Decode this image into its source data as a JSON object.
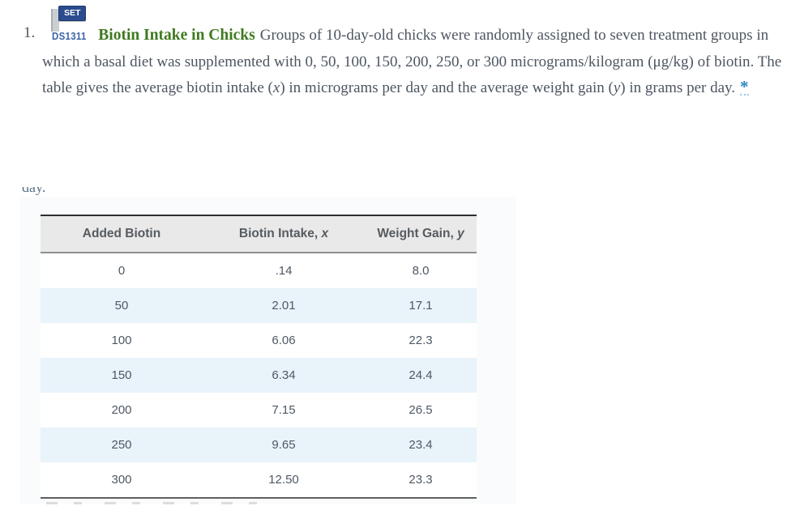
{
  "problem": {
    "number": "1.",
    "set_badge": "SET",
    "dataset_id": "DS1311",
    "title": "Biotin Intake in Chicks",
    "body": {
      "s1": "Groups of 10-day-old chicks were randomly assigned to seven treatment groups in which a basal diet was supplemented with 0, 50, 100, 150, 200, 250, or 300 micrograms/kilogram (μg/kg) of biotin. The table gives the average biotin intake (",
      "x_var": "x",
      "s2": ") in micrograms per day and the average weight gain (",
      "y_var": "y",
      "s3": ") in grams per day.",
      "footnote_marker": "*"
    }
  },
  "overlay": {
    "clipped_text_above": "day.",
    "table": {
      "headers": [
        {
          "label": "Added Biotin",
          "var": ""
        },
        {
          "label": "Biotin Intake, ",
          "var": "x"
        },
        {
          "label": "Weight Gain, ",
          "var": "y"
        }
      ],
      "rows": [
        [
          "0",
          ".14",
          "8.0"
        ],
        [
          "50",
          "2.01",
          "17.1"
        ],
        [
          "100",
          "6.06",
          "22.3"
        ],
        [
          "150",
          "6.34",
          "24.4"
        ],
        [
          "200",
          "7.15",
          "26.5"
        ],
        [
          "250",
          "9.65",
          "23.4"
        ],
        [
          "300",
          "12.50",
          "23.3"
        ]
      ]
    }
  },
  "colors": {
    "set_badge_bg": "#2b4d8f",
    "dataset_id_blue": "#3b62a8",
    "title_green": "#3f7a1f",
    "body_text": "#4d5661",
    "asterisk_blue": "#2e86c1",
    "card_bg": "#fafbfc",
    "table_header_bg": "#e9e9e9",
    "row_alt_bg": "#e9f3fa"
  }
}
